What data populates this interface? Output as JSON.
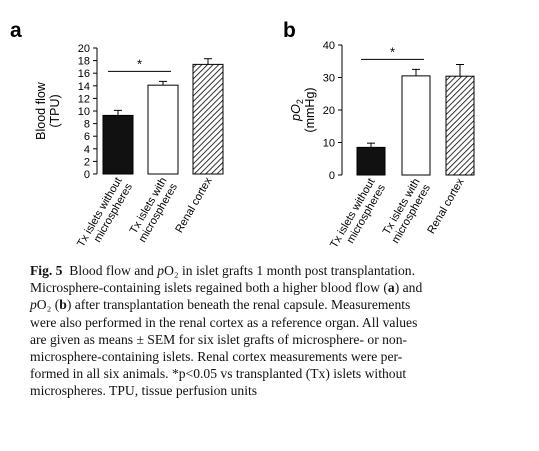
{
  "chart_data": [
    {
      "panel": "a",
      "type": "bar",
      "categories": [
        [
          "Tx islets without",
          "microspheres"
        ],
        [
          "Tx islets with",
          "microspheres"
        ],
        [
          "Renal cortex"
        ]
      ],
      "values": [
        9.3,
        14.1,
        17.4
      ],
      "errors": [
        0.8,
        0.6,
        0.9
      ],
      "fills": [
        "solid",
        "open",
        "hatched"
      ],
      "ylabel": [
        "Blood flow",
        "(TPU)"
      ],
      "ylim": [
        0,
        20
      ],
      "yticks": [
        "0",
        "2",
        "4",
        "6",
        "8",
        "10",
        "12",
        "14",
        "16",
        "18",
        "20"
      ],
      "significance": {
        "from": 0,
        "to": 1,
        "label": "*"
      }
    },
    {
      "panel": "b",
      "type": "bar",
      "categories": [
        [
          "Tx islets without",
          "microspheres"
        ],
        [
          "Tx islets with",
          "microspheres"
        ],
        [
          "Renal cortex"
        ]
      ],
      "values": [
        8.5,
        30.5,
        30.4
      ],
      "errors": [
        1.3,
        2.0,
        3.6
      ],
      "fills": [
        "solid",
        "open",
        "hatched"
      ],
      "ylabel_var": "pO",
      "ylabel_sub": "2",
      "ylabel_unit": "(mmHg)",
      "ylim": [
        0,
        40
      ],
      "yticks": [
        "0",
        "10",
        "20",
        "30",
        "40"
      ],
      "significance": {
        "from": 0,
        "to": 1,
        "label": "*"
      }
    }
  ],
  "caption": {
    "fig_label": "Fig. 5",
    "lines": [
      "Blood flow and pO₂ in islet grafts 1 month post transplantation.",
      "Microsphere-containing islets regained both a higher blood flow (a) and",
      "pO₂ (b) after transplantation beneath the renal capsule. Measurements",
      "were also performed in the renal cortex as a reference organ. All values",
      "are given as means ± SEM for six islet grafts of microsphere- or non-",
      "microsphere-containing islets. Renal cortex measurements were per-",
      "formed in all six animals. *p<0.05 vs transplanted (Tx) islets without",
      "microspheres. TPU, tissue perfusion units"
    ]
  }
}
